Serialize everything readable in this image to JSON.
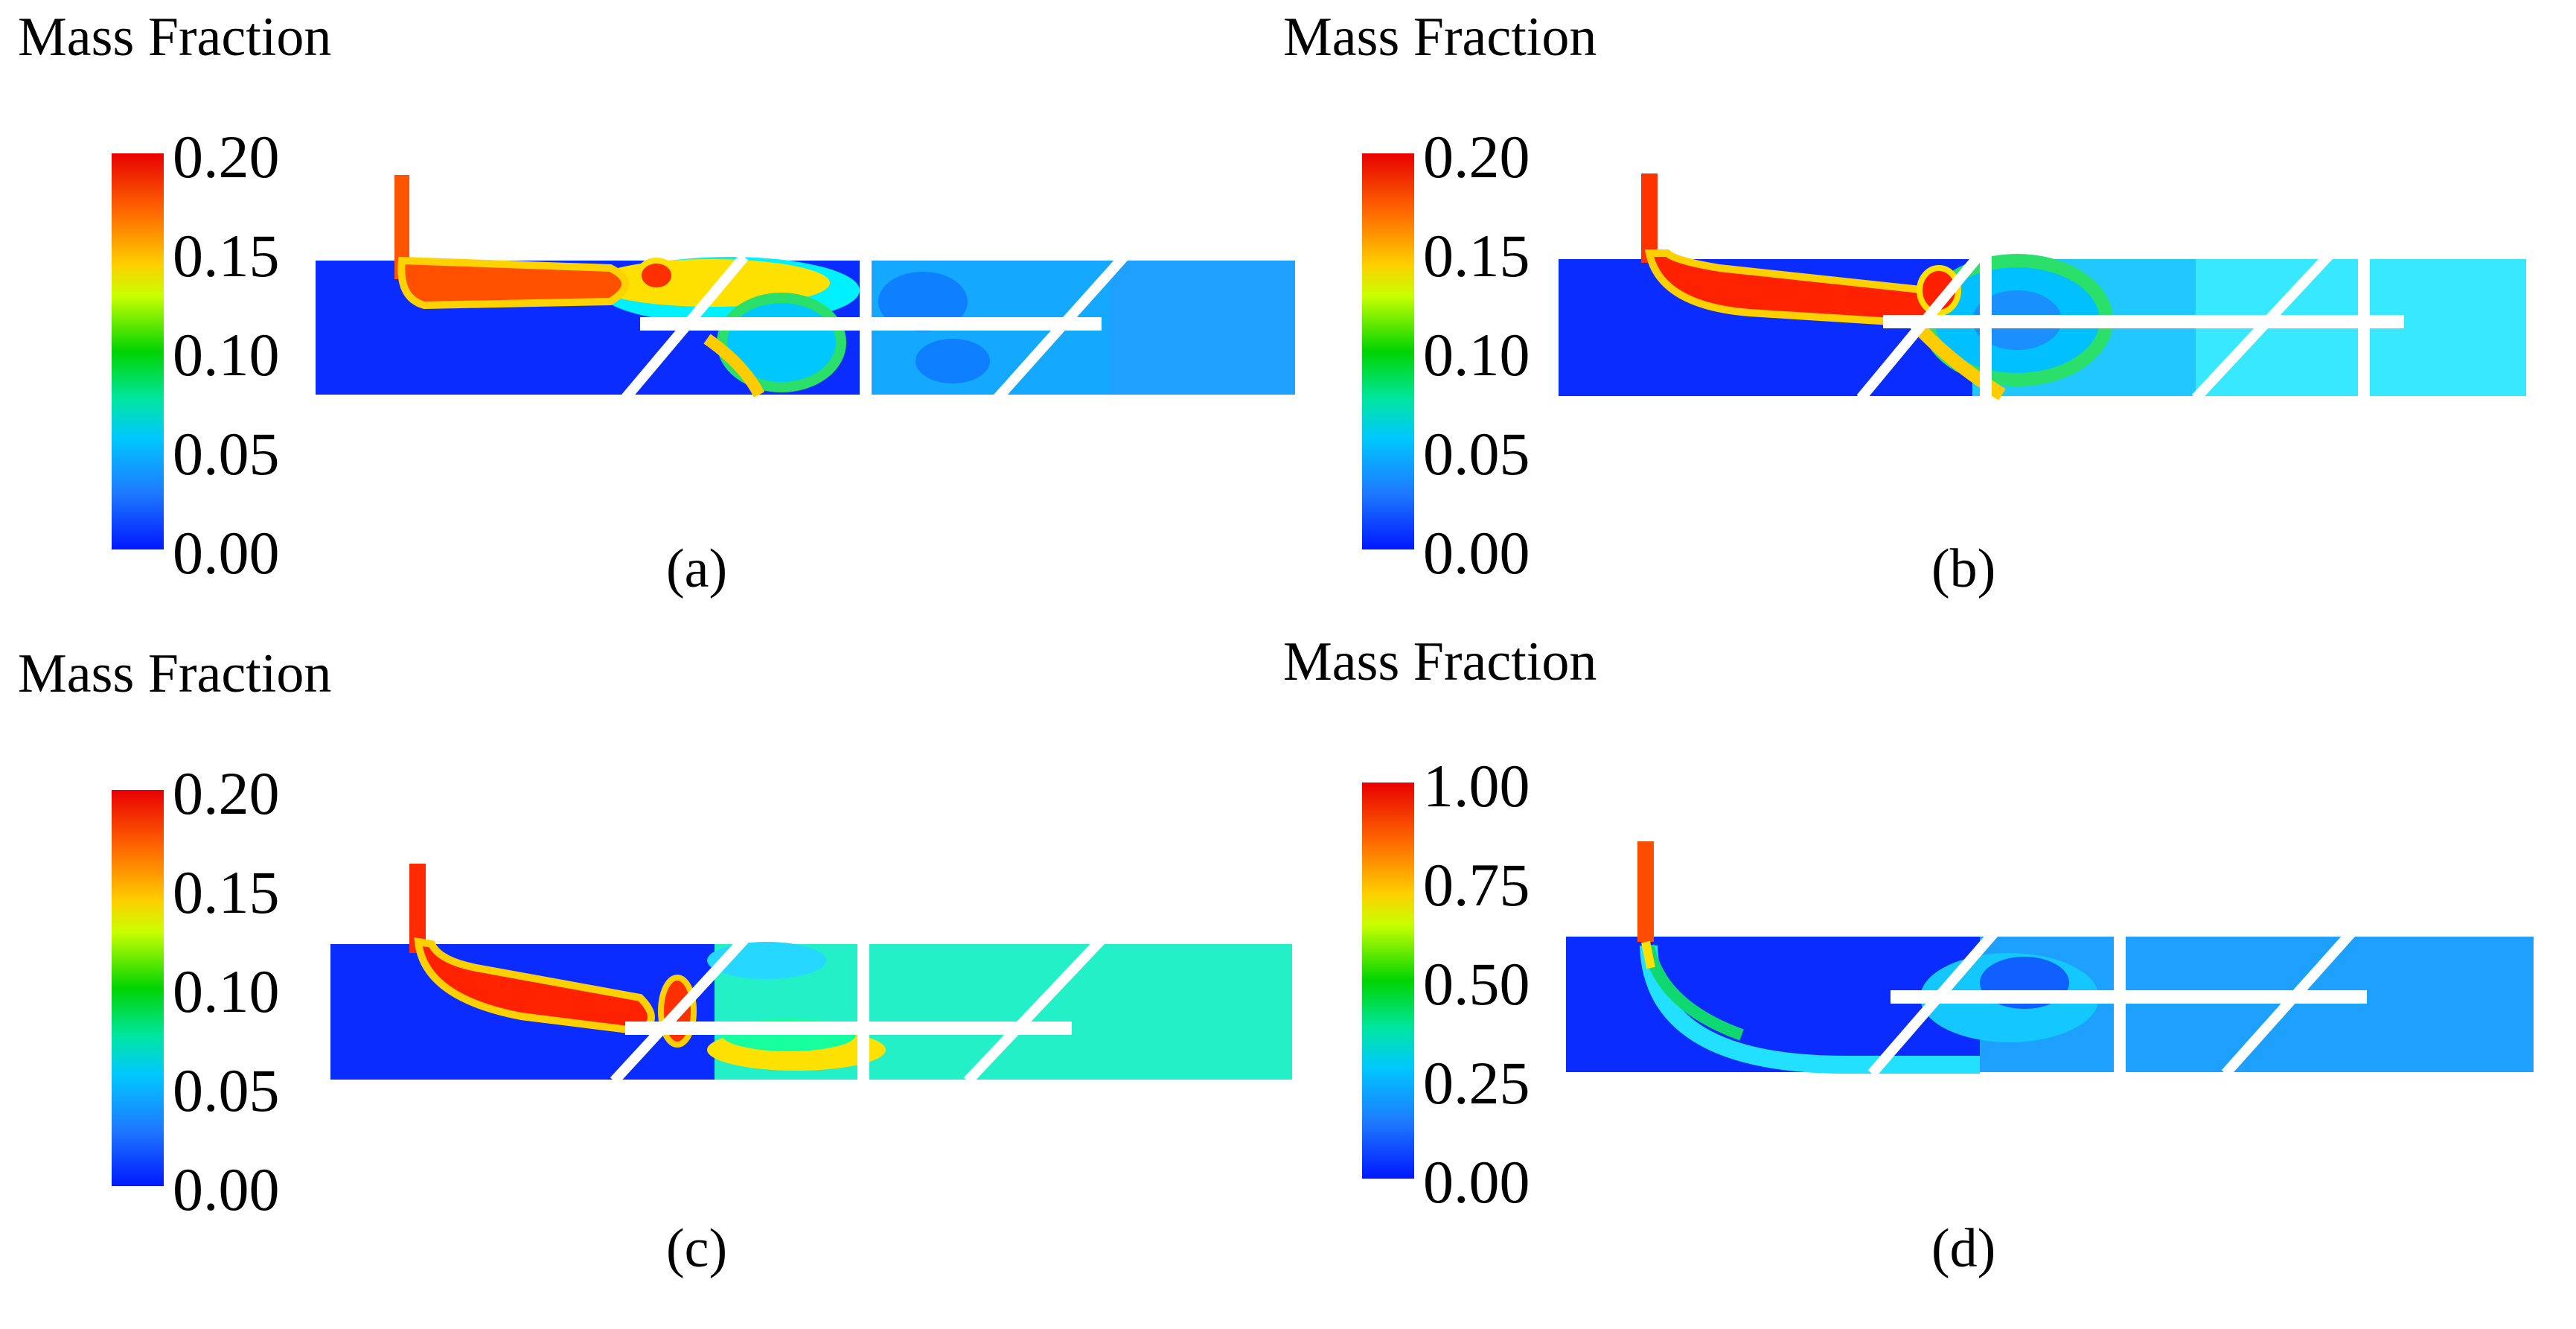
{
  "panels": [
    {
      "title": "Mass Fraction",
      "ticks": [
        "0.20",
        "0.15",
        "0.10",
        "0.05",
        "0.00"
      ],
      "label": "(a)"
    },
    {
      "title": "Mass Fraction",
      "ticks": [
        "0.20",
        "0.15",
        "0.10",
        "0.05",
        "0.00"
      ],
      "label": "(b)"
    },
    {
      "title": "Mass Fraction",
      "ticks": [
        "0.20",
        "0.15",
        "0.10",
        "0.05",
        "0.00"
      ],
      "label": "(c)"
    },
    {
      "title": "Mass Fraction",
      "ticks": [
        "1.00",
        "0.75",
        "0.50",
        "0.25",
        "0.00"
      ],
      "label": "(d)"
    }
  ],
  "colors": {
    "low": "#0018ff",
    "mid": "#00d400",
    "high": "#e80000"
  }
}
